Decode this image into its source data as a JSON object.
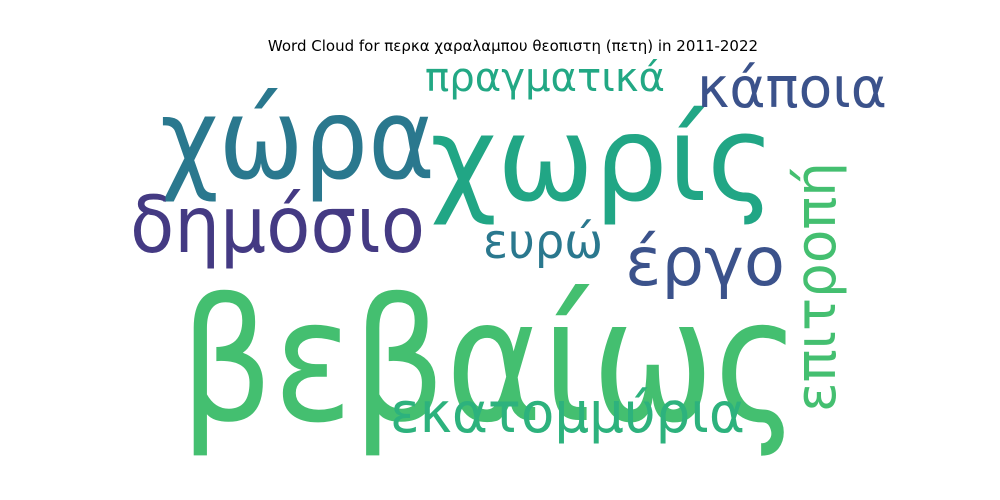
{
  "chart_data": {
    "type": "wordcloud",
    "title": "Word Cloud for περκα χαραλαμπου θεοπιστη (πετη) in 2011-2022",
    "words": [
      {
        "text": "βεβαίως",
        "color": "#44bf70"
      },
      {
        "text": "χωρίς",
        "color": "#21a685"
      },
      {
        "text": "χώρα",
        "color": "#2a788e"
      },
      {
        "text": "δημόσιο",
        "color": "#443a83"
      },
      {
        "text": "εκατομμύρια",
        "color": "#2db27d"
      },
      {
        "text": "έργο",
        "color": "#3b528b"
      },
      {
        "text": "επιτροπή",
        "color": "#44bf70"
      },
      {
        "text": "κάποια",
        "color": "#3b528b"
      },
      {
        "text": "πραγματικά",
        "color": "#22a884"
      },
      {
        "text": "ευρώ",
        "color": "#2a788e"
      }
    ]
  }
}
